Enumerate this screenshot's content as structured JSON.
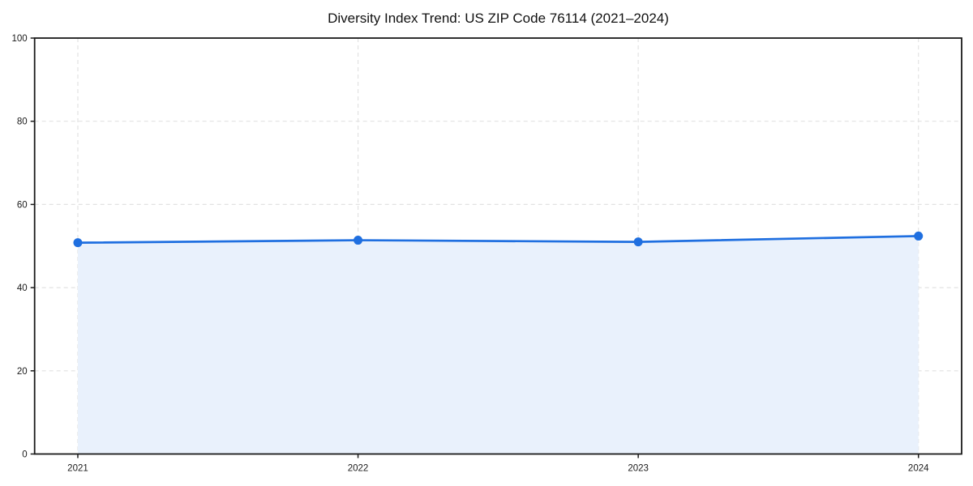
{
  "chart_data": {
    "type": "area",
    "title": "Diversity Index Trend: US ZIP Code 76114 (2021–2024)",
    "xlabel": "",
    "ylabel": "",
    "categories": [
      "2021",
      "2022",
      "2023",
      "2024"
    ],
    "series": [
      {
        "name": "Diversity Index",
        "values": [
          50.8,
          51.4,
          51.0,
          52.4
        ]
      }
    ],
    "ylim": [
      0,
      100
    ],
    "yticks": [
      0,
      20,
      40,
      60,
      80,
      100
    ],
    "grid": "dashed, horizontal and vertical",
    "legend": "none",
    "colors": {
      "line": "#1f6fe0",
      "marker": "#1f6fe0",
      "fill": "#e9f1fc",
      "axis": "#1a1a1a",
      "gridline": "#e2e2e2",
      "tick_text": "#1a1a1a",
      "background": "#ffffff"
    }
  }
}
